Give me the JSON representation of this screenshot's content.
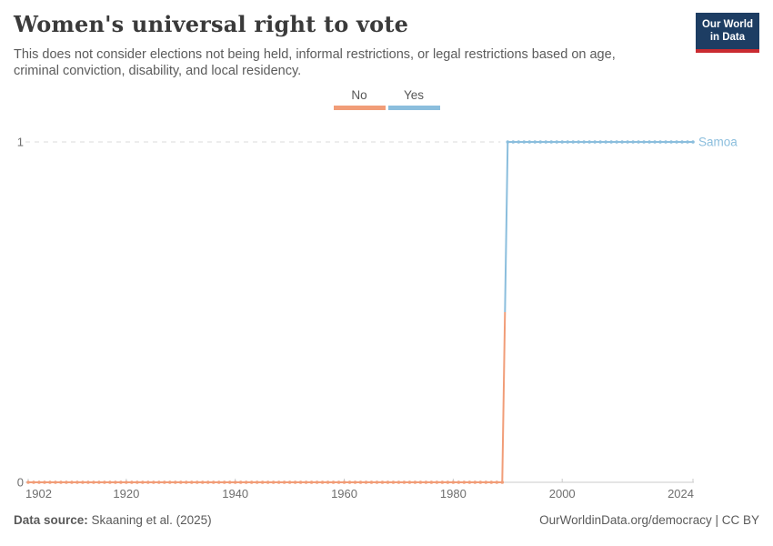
{
  "header": {
    "title": "Women's universal right to vote",
    "subtitle": "This does not consider elections not being held, informal restrictions, or legal restrictions based on age, criminal conviction, disability, and local residency.",
    "logo": {
      "line1": "Our World",
      "line2": "in Data",
      "bg_color": "#1D3D63",
      "accent_color": "#CA2B31"
    }
  },
  "legend": {
    "items": [
      {
        "label": "No",
        "color": "#F19D78"
      },
      {
        "label": "Yes",
        "color": "#8BBEDD"
      }
    ]
  },
  "chart_data": {
    "type": "line",
    "step": true,
    "title": "Women's universal right to vote",
    "xlabel": "",
    "ylabel": "",
    "x_range": [
      1902,
      2024
    ],
    "ylim": [
      0,
      1
    ],
    "yticks": [
      0,
      1
    ],
    "xticks": [
      1902,
      1920,
      1940,
      1960,
      1980,
      2000,
      2024
    ],
    "grid": "dashed horizontal gridline at y=1 only",
    "legend_position": "top-center",
    "axis_color": "#CBCBCB",
    "gridline_color": "#DBDBDB",
    "tick_label_color": "#6E6E6E",
    "series": [
      {
        "name": "Samoa",
        "color_by_category": true,
        "segments": [
          {
            "category": "No",
            "value": 0,
            "start_year": 1902,
            "end_year": 1989,
            "color": "#F19D78"
          },
          {
            "category": "Yes",
            "value": 1,
            "start_year": 1990,
            "end_year": 2024,
            "color": "#8BBEDD"
          }
        ]
      }
    ]
  },
  "footer": {
    "source_label": "Data source:",
    "source_value": "Skaaning et al. (2025)",
    "credit": "OurWorldinData.org/democracy | CC BY"
  }
}
